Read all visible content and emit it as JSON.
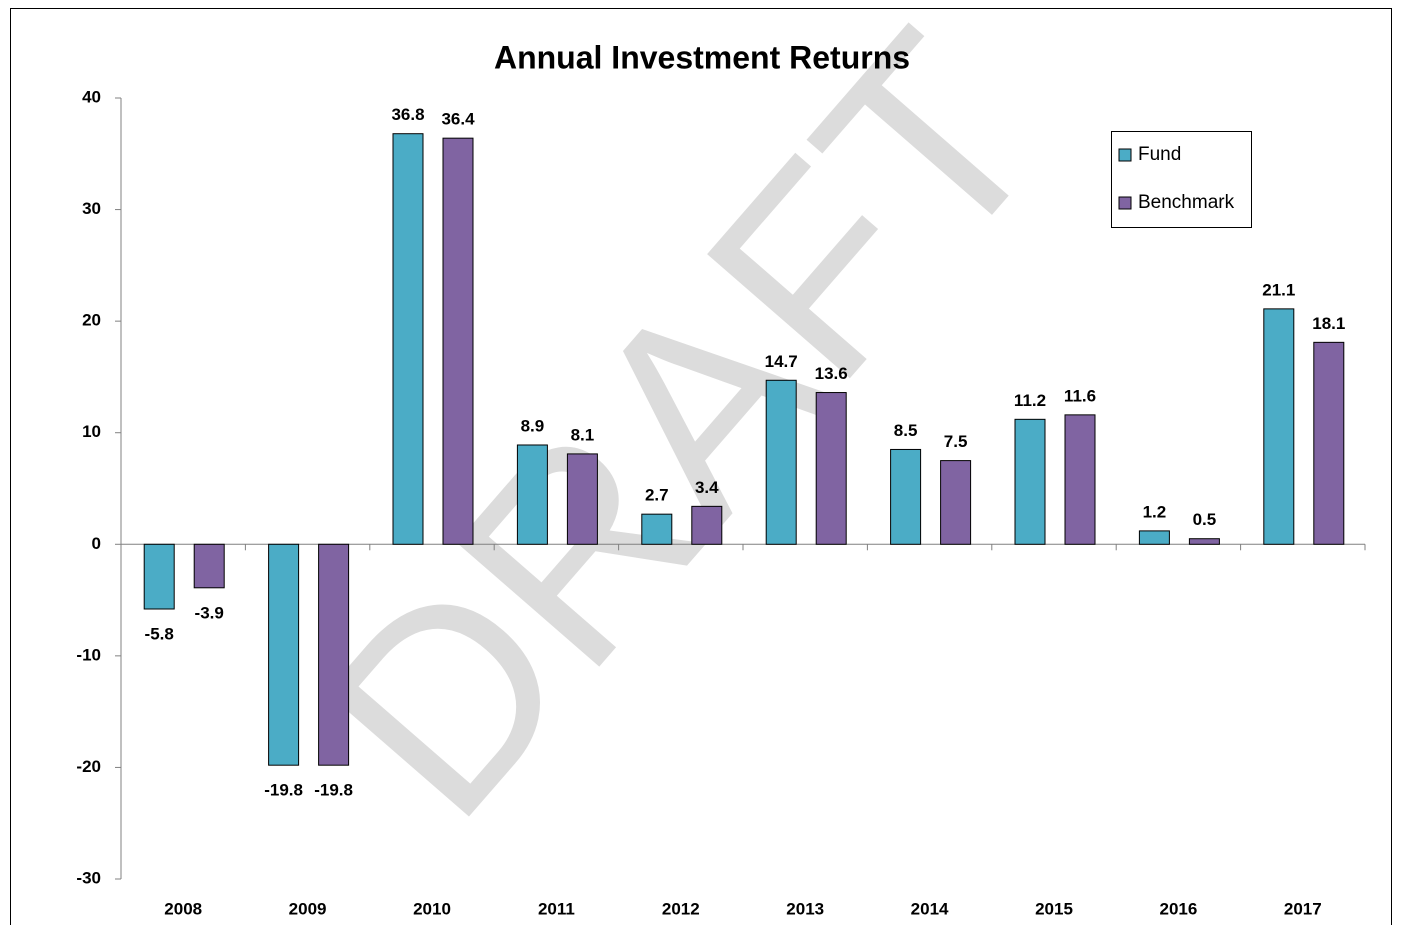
{
  "chart_data": {
    "type": "bar",
    "title": "Annual Investment Returns",
    "watermark": "DRAFT",
    "categories": [
      "2008",
      "2009",
      "2010",
      "2011",
      "2012",
      "2013",
      "2014",
      "2015",
      "2016",
      "2017"
    ],
    "series": [
      {
        "name": "Fund",
        "color": "#4bacc6",
        "values": [
          -5.8,
          -19.8,
          36.8,
          8.9,
          2.7,
          14.7,
          8.5,
          11.2,
          1.2,
          21.1
        ]
      },
      {
        "name": "Benchmark",
        "color": "#8064a2",
        "values": [
          -3.9,
          -19.8,
          36.4,
          8.1,
          3.4,
          13.6,
          7.5,
          11.6,
          0.5,
          18.1
        ]
      }
    ],
    "ylim": [
      -30,
      40
    ],
    "yticks": [
      -30,
      -20,
      -10,
      0,
      10,
      20,
      30,
      40
    ],
    "grid": false,
    "legend": "upper right"
  }
}
